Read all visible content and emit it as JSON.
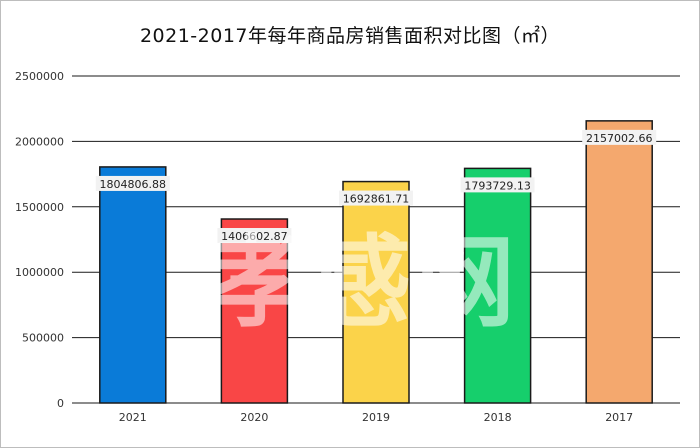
{
  "chart_data": {
    "type": "bar",
    "title": "2021-2017年每年商品房销售面积对比图（㎡）",
    "categories": [
      "2021",
      "2020",
      "2019",
      "2018",
      "2017"
    ],
    "values": [
      1804806.88,
      1406602.87,
      1692861.71,
      1793729.13,
      2157002.66
    ],
    "value_labels": [
      "1804806.88",
      "1406602.87",
      "1692861.71",
      "1793729.13",
      "2157002.66"
    ],
    "colors": [
      "#0a7bd8",
      "#f94646",
      "#fbd34a",
      "#16cf6c",
      "#f4a86e"
    ],
    "yticks": [
      "0",
      "500000",
      "1000000",
      "1500000",
      "2000000",
      "2500000"
    ],
    "ylim": [
      0,
      2500000
    ],
    "xlabel": "",
    "ylabel": "",
    "grid": true,
    "legend": "none"
  },
  "watermark": {
    "text": "孝感网"
  }
}
